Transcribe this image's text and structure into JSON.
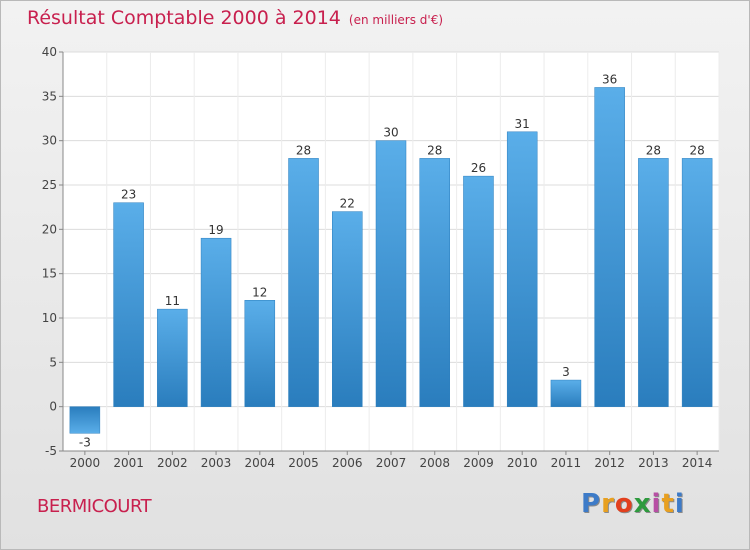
{
  "header": {
    "title": "Résultat Comptable 2000 à 2014",
    "subtitle": "(en milliers d'€)"
  },
  "footer": {
    "commune": "BERMICOURT",
    "logo_text": "Proxiti",
    "logo_colors": [
      "#3d7bc8",
      "#e8a020",
      "#e2401e",
      "#2e9a3e",
      "#b74fa4",
      "#e8a020",
      "#3d7bc8"
    ]
  },
  "chart_data": {
    "type": "bar",
    "categories": [
      "2000",
      "2001",
      "2002",
      "2003",
      "2004",
      "2005",
      "2006",
      "2007",
      "2008",
      "2009",
      "2010",
      "2011",
      "2012",
      "2013",
      "2014"
    ],
    "values": [
      -3,
      23,
      11,
      19,
      12,
      28,
      22,
      30,
      28,
      26,
      31,
      3,
      36,
      28,
      28
    ],
    "ylim": [
      -5,
      40
    ],
    "yticks": [
      -5,
      0,
      5,
      10,
      15,
      20,
      25,
      30,
      35,
      40
    ],
    "grid": true,
    "bar_color_top": "#5aaee9",
    "bar_color_bottom": "#2a7dbd"
  }
}
